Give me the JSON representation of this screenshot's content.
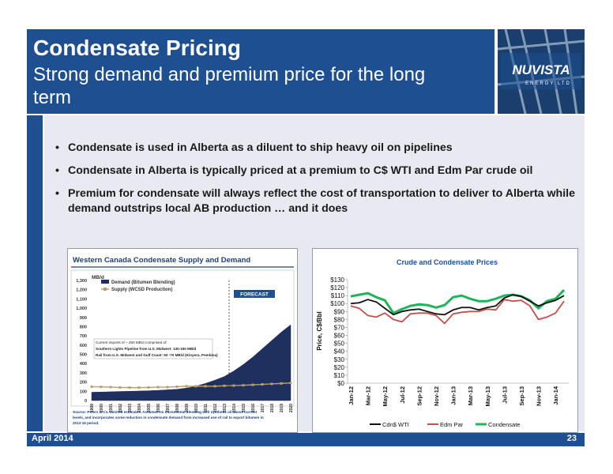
{
  "header": {
    "title": "Condensate Pricing",
    "subtitle": "Strong demand and premium price for the long term",
    "logo_text": "NUVISTA",
    "logo_sub": "ENERGY LTD"
  },
  "bullets": [
    "Condensate is used in Alberta as a diluent to ship heavy oil on pipelines",
    "Condensate in Alberta is typically priced at a premium to C$ WTI and Edm Par crude oil",
    "Premium for condensate will always reflect the cost of transportation to deliver to Alberta while demand outstrips local AB production … and it does"
  ],
  "footer": {
    "date": "April 2014",
    "page": "23"
  },
  "colors": {
    "brand": "#1d4f91",
    "wti": "#111111",
    "edm": "#c0504d",
    "condensate": "#1fb35a",
    "demand": "#1f2f5e",
    "supply": "#b8a06a"
  },
  "chart_data": [
    {
      "type": "area",
      "title": "Western Canada Condensate Supply and Demand",
      "ylabel": "MB/d",
      "ylim": [
        0,
        1300
      ],
      "yticks": [
        "1,300",
        "1,200",
        "1,100",
        "1,000",
        "900",
        "800",
        "700",
        "600",
        "500",
        "400",
        "300",
        "200",
        "100",
        "0"
      ],
      "categories": [
        "1999",
        "2000",
        "2001",
        "2002",
        "2003",
        "2004",
        "2005",
        "2006",
        "2007",
        "2008",
        "2009",
        "2010",
        "2011",
        "2012",
        "2013",
        "2014",
        "2015",
        "2016",
        "2017",
        "2018",
        "2019",
        "2020"
      ],
      "series": [
        {
          "name": "Demand (Bitumen Blending)",
          "values": [
            90,
            92,
            95,
            98,
            100,
            103,
            106,
            110,
            116,
            122,
            135,
            155,
            185,
            220,
            260,
            320,
            390,
            470,
            560,
            650,
            740,
            820
          ]
        },
        {
          "name": "Supply (WCSD Production)",
          "values": [
            150,
            148,
            145,
            142,
            140,
            140,
            142,
            145,
            145,
            150,
            155,
            155,
            155,
            155,
            160,
            162,
            165,
            170,
            175,
            180,
            185,
            190
          ]
        }
      ],
      "forecast_label": "FORECAST",
      "annotation": [
        "Current imports of ~ 250 MB/d comprised of:",
        "Southern Lights Pipeline from U.S. Midwest: 130-150 MB/d",
        "Rail from U.S. Midwest and Gulf Coast: 50 -70 MB/d (Kinyera, Pembina)"
      ],
      "source": "Source: Peters & Co. Limited estimates. Assumes no incremental blending with synthetic oil above current levels, and incorporates some reduction in condensate demand from increased use of rail to export bitumen in 2013-16 period."
    },
    {
      "type": "line",
      "title": "Crude and Condensate Prices",
      "ylabel": "Price, C$/Bbl",
      "ylim": [
        0,
        130
      ],
      "yticks": [
        "$130",
        "$120",
        "$110",
        "$100",
        "$90",
        "$80",
        "$70",
        "$60",
        "$50",
        "$40",
        "$30",
        "$20",
        "$10",
        "$0"
      ],
      "x": [
        "Jan-12",
        "Feb-12",
        "Mar-12",
        "Apr-12",
        "May-12",
        "Jun-12",
        "Jul-12",
        "Aug-12",
        "Sep-12",
        "Oct-12",
        "Nov-12",
        "Dec-12",
        "Jan-13",
        "Feb-13",
        "Mar-13",
        "Apr-13",
        "May-13",
        "Jun-13",
        "Jul-13",
        "Aug-13",
        "Sep-13",
        "Oct-13",
        "Nov-13",
        "Dec-13",
        "Jan-14",
        "Feb-14"
      ],
      "xtick_labels": [
        "Jan-12",
        "Mar-12",
        "May-12",
        "Jul-12",
        "Sep-12",
        "Nov-12",
        "Jan-13",
        "Mar-13",
        "May-13",
        "Jul-13",
        "Sep-13",
        "Nov-13",
        "Jan-14"
      ],
      "series": [
        {
          "name": "Cdn$ WTI",
          "values": [
            100,
            101,
            105,
            102,
            94,
            86,
            90,
            92,
            93,
            90,
            87,
            86,
            92,
            95,
            95,
            92,
            95,
            97,
            107,
            111,
            109,
            103,
            97,
            101,
            104,
            110
          ]
        },
        {
          "name": "Edm Par",
          "values": [
            97,
            94,
            85,
            83,
            88,
            80,
            77,
            87,
            88,
            88,
            85,
            75,
            87,
            89,
            90,
            90,
            93,
            92,
            105,
            103,
            104,
            97,
            80,
            83,
            88,
            103
          ]
        },
        {
          "name": "Condensate",
          "values": [
            109,
            111,
            113,
            108,
            104,
            88,
            93,
            97,
            99,
            98,
            95,
            98,
            108,
            110,
            106,
            103,
            103,
            106,
            110,
            111,
            109,
            104,
            94,
            103,
            106,
            117
          ]
        }
      ],
      "legend": "bottom"
    }
  ]
}
